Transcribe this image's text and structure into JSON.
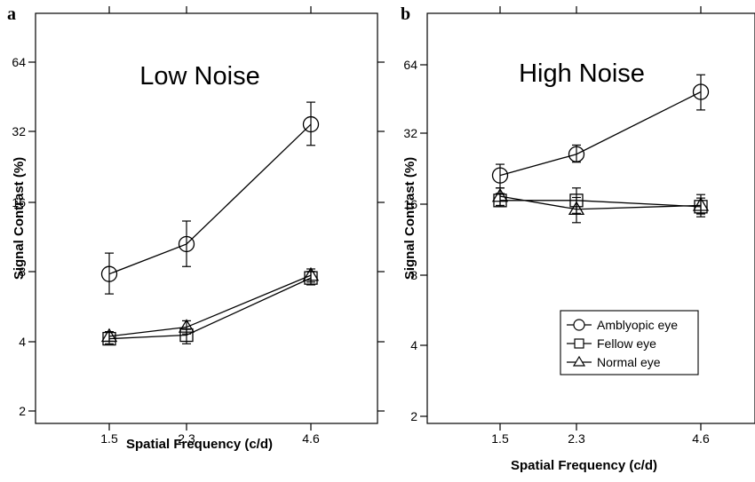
{
  "chart_data": [
    {
      "type": "line",
      "panel_label": "a",
      "title": "Low Noise",
      "xlabel": "Spatial Frequency (c/d)",
      "ylabel": "Signal Contrast (%)",
      "x_scale": "log",
      "y_scale": "log",
      "categories": [
        "1.5",
        "2.3",
        "4.6"
      ],
      "x": [
        1.5,
        2.3,
        4.6
      ],
      "xlim": [
        1.0,
        6.8
      ],
      "y_ticks": [
        2,
        4,
        8,
        16,
        32,
        64
      ],
      "y_tick_labels": [
        "2",
        "4",
        "8",
        "16",
        "32",
        "64"
      ],
      "ylim": [
        1.8,
        100
      ],
      "grid": false,
      "series": [
        {
          "name": "Amblyopic eye",
          "marker": "circle",
          "values": [
            7.8,
            10.5,
            34.5
          ],
          "err_low": [
            6.4,
            8.4,
            28.0
          ],
          "err_high": [
            9.6,
            13.2,
            43.0
          ]
        },
        {
          "name": "Fellow eye",
          "marker": "square",
          "values": [
            4.1,
            4.25,
            7.5
          ],
          "err_low": [
            3.9,
            3.9,
            7.0
          ],
          "err_high": [
            4.4,
            4.5,
            8.0
          ]
        },
        {
          "name": "Normal eye",
          "marker": "triangle",
          "values": [
            4.2,
            4.6,
            7.7
          ],
          "err_low": [
            4.0,
            4.3,
            7.2
          ],
          "err_high": [
            4.4,
            4.9,
            8.2
          ]
        }
      ]
    },
    {
      "type": "line",
      "panel_label": "b",
      "title": "High Noise",
      "xlabel": "Spatial Frequency (c/d)",
      "ylabel": "Signal Contrast (%)",
      "x_scale": "log",
      "y_scale": "log",
      "categories": [
        "1.5",
        "2.3",
        "4.6"
      ],
      "x": [
        1.5,
        2.3,
        4.6
      ],
      "xlim": [
        1.0,
        6.8
      ],
      "y_ticks": [
        2,
        4,
        8,
        16,
        32,
        64
      ],
      "y_tick_labels": [
        "2",
        "4",
        "8",
        "16",
        "32",
        "64"
      ],
      "ylim": [
        1.8,
        100
      ],
      "grid": false,
      "legend": {
        "position": "bottom-right",
        "entries": [
          {
            "label": "Amblyopic eye",
            "marker": "circle"
          },
          {
            "label": "Fellow eye",
            "marker": "square"
          },
          {
            "label": "Normal eye",
            "marker": "triangle"
          }
        ]
      },
      "series": [
        {
          "name": "Amblyopic eye",
          "marker": "circle",
          "values": [
            21.5,
            26.5,
            49.0
          ],
          "err_low": [
            19.0,
            24.5,
            41.0
          ],
          "err_high": [
            24.0,
            29.0,
            58.0
          ]
        },
        {
          "name": "Fellow eye",
          "marker": "square",
          "values": [
            16.8,
            16.8,
            15.8
          ],
          "err_low": [
            15.8,
            14.8,
            14.7
          ],
          "err_high": [
            18.0,
            19.0,
            17.2
          ]
        },
        {
          "name": "Normal eye",
          "marker": "triangle",
          "values": [
            17.5,
            15.4,
            16.0
          ],
          "err_low": [
            16.0,
            13.5,
            14.3
          ],
          "err_high": [
            19.0,
            17.3,
            17.8
          ]
        }
      ]
    }
  ]
}
